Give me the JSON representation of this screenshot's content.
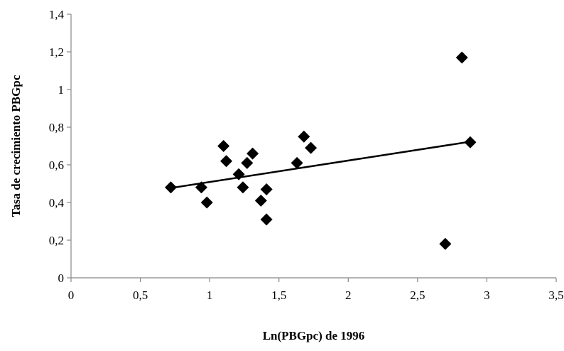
{
  "chart_data": {
    "type": "scatter",
    "title": "",
    "xlabel": "Ln(PBGpc) de 1996",
    "ylabel": "Tasa de crecimiento PBGpc",
    "xlim": [
      0,
      3.5
    ],
    "ylim": [
      0,
      1.4
    ],
    "x_ticks": [
      "0",
      "0,5",
      "1",
      "1,5",
      "2",
      "2,5",
      "3",
      "3,5"
    ],
    "y_ticks": [
      "0",
      "0,2",
      "0,4",
      "0,6",
      "0,8",
      "1",
      "1,2",
      "1,4"
    ],
    "grid": false,
    "legend": "none",
    "marker": "diamond",
    "marker_color": "#000000",
    "points": [
      {
        "x": 0.72,
        "y": 0.48
      },
      {
        "x": 0.94,
        "y": 0.48
      },
      {
        "x": 0.98,
        "y": 0.4
      },
      {
        "x": 1.1,
        "y": 0.7
      },
      {
        "x": 1.12,
        "y": 0.62
      },
      {
        "x": 1.21,
        "y": 0.55
      },
      {
        "x": 1.24,
        "y": 0.48
      },
      {
        "x": 1.27,
        "y": 0.61
      },
      {
        "x": 1.31,
        "y": 0.66
      },
      {
        "x": 1.37,
        "y": 0.41
      },
      {
        "x": 1.41,
        "y": 0.47
      },
      {
        "x": 1.41,
        "y": 0.31
      },
      {
        "x": 1.63,
        "y": 0.61
      },
      {
        "x": 1.68,
        "y": 0.75
      },
      {
        "x": 1.73,
        "y": 0.69
      },
      {
        "x": 2.7,
        "y": 0.18
      },
      {
        "x": 2.82,
        "y": 1.17
      },
      {
        "x": 2.88,
        "y": 0.72
      }
    ],
    "trendline": {
      "type": "linear",
      "x": [
        0.72,
        2.88
      ],
      "y": [
        0.477,
        0.723
      ],
      "color": "#000000"
    }
  }
}
